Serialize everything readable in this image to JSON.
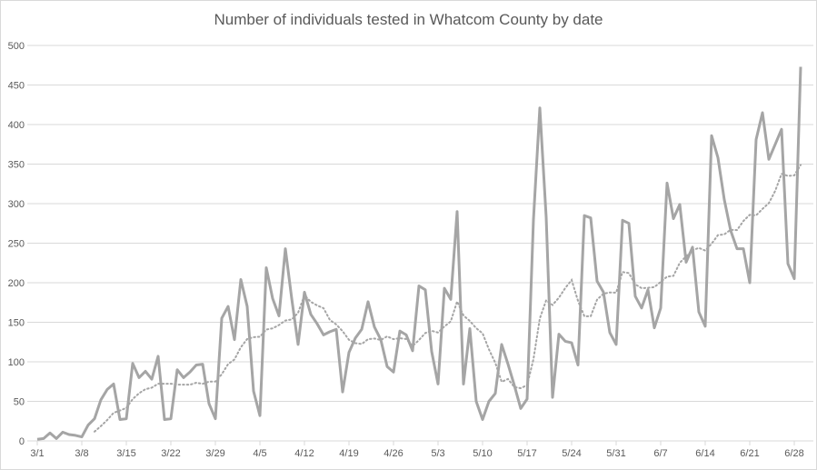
{
  "chart_data": {
    "type": "line",
    "title": "Number of individuals tested in  Whatcom County by date",
    "xlabel": "",
    "ylabel": "",
    "ylim": [
      0,
      500
    ],
    "yticks": [
      0,
      50,
      100,
      150,
      200,
      250,
      300,
      350,
      400,
      450,
      500
    ],
    "grid": true,
    "legend": "none",
    "x_start": "3/1",
    "x_tick_labels": [
      "3/1",
      "3/8",
      "3/15",
      "3/22",
      "3/29",
      "4/5",
      "4/12",
      "4/19",
      "4/26",
      "5/3",
      "5/10",
      "5/17",
      "5/24",
      "5/31",
      "6/7",
      "6/14",
      "6/21",
      "6/28"
    ],
    "series": [
      {
        "name": "Individuals tested",
        "color": "#a5a5a5",
        "values": [
          2,
          3,
          10,
          3,
          11,
          8,
          7,
          5,
          20,
          28,
          52,
          65,
          72,
          27,
          28,
          98,
          80,
          88,
          78,
          107,
          27,
          28,
          90,
          80,
          87,
          96,
          97,
          47,
          28,
          155,
          170,
          128,
          204,
          170,
          63,
          32,
          219,
          180,
          158,
          243,
          180,
          122,
          188,
          160,
          148,
          134,
          138,
          141,
          62,
          112,
          130,
          141,
          176,
          144,
          128,
          94,
          87,
          139,
          134,
          114,
          196,
          191,
          113,
          72,
          193,
          179,
          290,
          72,
          142,
          50,
          27,
          50,
          60,
          122,
          97,
          70,
          41,
          53,
          280,
          421,
          283,
          55,
          135,
          126,
          124,
          96,
          285,
          282,
          202,
          188,
          137,
          122,
          279,
          275,
          183,
          168,
          191,
          143,
          168,
          326,
          281,
          299,
          226,
          245,
          163,
          145,
          386,
          358,
          305,
          266,
          243,
          243,
          200,
          381,
          415,
          356,
          375,
          394,
          224,
          205,
          473
        ]
      }
    ],
    "trendline": {
      "type": "moving_average",
      "period": 7,
      "start_index": 9,
      "color": "#a5a5a5",
      "style": "dotted"
    }
  }
}
